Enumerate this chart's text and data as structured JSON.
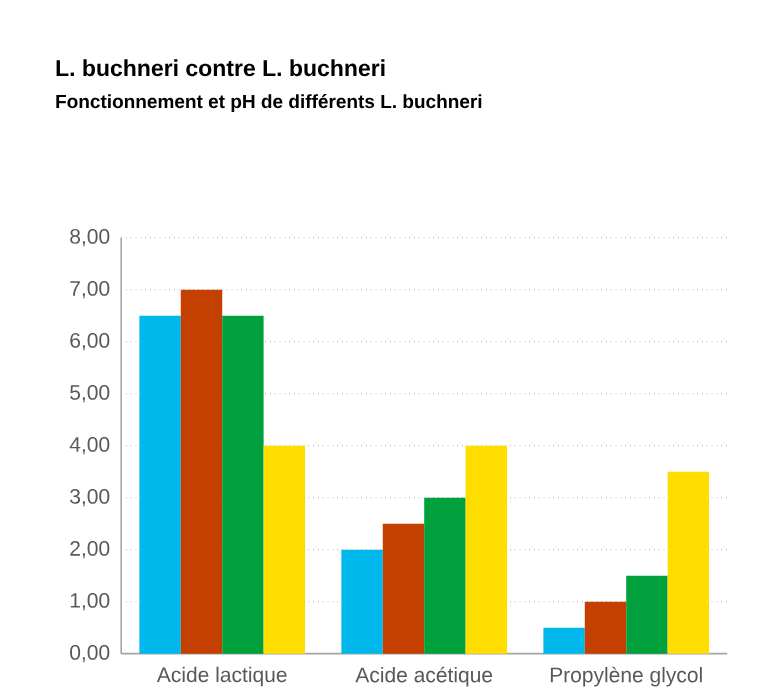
{
  "chart_data": {
    "type": "bar",
    "title": "L. buchneri contre L. buchneri",
    "subtitle": "Fonctionnement et pH de différents L. buchneri",
    "categories": [
      "Acide lactique",
      "Acide acétique",
      "Propylène glycol"
    ],
    "series": [
      {
        "color": "#00b8ec",
        "values": [
          6.5,
          2.0,
          0.5
        ]
      },
      {
        "color": "#c44000",
        "values": [
          7.0,
          2.5,
          1.0
        ]
      },
      {
        "color": "#00a03c",
        "values": [
          6.5,
          3.0,
          1.5
        ]
      },
      {
        "color": "#ffdd00",
        "values": [
          4.0,
          4.0,
          3.5
        ]
      }
    ],
    "ylim": [
      0,
      8
    ],
    "yticks": [
      {
        "value": 0,
        "label": "0,00"
      },
      {
        "value": 1,
        "label": "1,00"
      },
      {
        "value": 2,
        "label": "2,00"
      },
      {
        "value": 3,
        "label": "3,00"
      },
      {
        "value": 4,
        "label": "4,00"
      },
      {
        "value": 5,
        "label": "5,00"
      },
      {
        "value": 6,
        "label": "6,00"
      },
      {
        "value": 7,
        "label": "7,00"
      },
      {
        "value": 8,
        "label": "8,00"
      }
    ],
    "grid": "y"
  }
}
